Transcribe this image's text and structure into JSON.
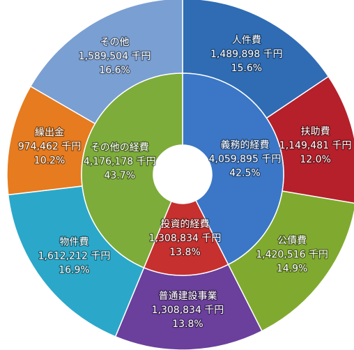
{
  "chart_data": {
    "type": "donut",
    "rings": [
      {
        "categories": [
          "義務的経費",
          "投資的経費",
          "その他の経費"
        ],
        "values": [
          4059895,
          1308834,
          4176178
        ],
        "value_labels": [
          "4,059,895 千円",
          "1,308,834 千円",
          "4,176,178 千円"
        ],
        "percents": [
          42.5,
          13.8,
          43.7
        ],
        "percent_labels": [
          "42.5%",
          "13.8%",
          "43.7%"
        ],
        "colors": [
          "#3b77c6",
          "#c6302f",
          "#7dac3a"
        ]
      },
      {
        "categories": [
          "人件費",
          "扶助費",
          "公債費",
          "普通建設事業",
          "物件費",
          "繰出金",
          "その他"
        ],
        "values": [
          1489898,
          1149481,
          1420516,
          1308834,
          1612212,
          974462,
          1589504
        ],
        "value_labels": [
          "1,489,898 千円",
          "1,149,481 千円",
          "1,420,516 千円",
          "1,308,834 千円",
          "1,612,212 千円",
          "974,462 千円",
          "1,589,504 千円"
        ],
        "percents": [
          15.6,
          12.0,
          14.9,
          13.8,
          16.9,
          10.2,
          16.6
        ],
        "percent_labels": [
          "15.6%",
          "12.0%",
          "14.9%",
          "13.8%",
          "16.9%",
          "10.2%",
          "16.6%"
        ],
        "colors": [
          "#2f6cb4",
          "#b5202b",
          "#80aa2f",
          "#6b3f9c",
          "#2ba8c9",
          "#e67b1f",
          "#7a9fd2"
        ]
      }
    ]
  }
}
